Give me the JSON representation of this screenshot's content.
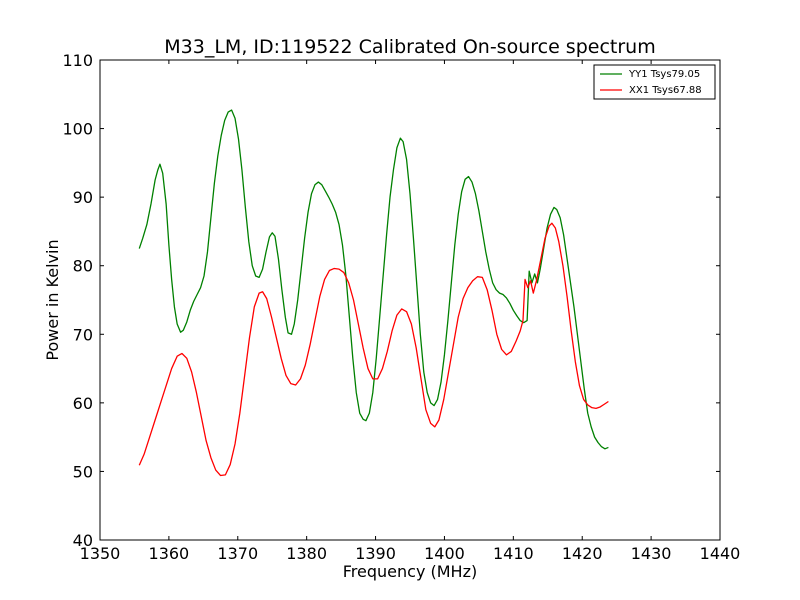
{
  "chart_data": {
    "type": "line",
    "title": "M33_LM, ID:119522 Calibrated On-source spectrum",
    "xlabel": "Frequency (MHz)",
    "ylabel": "Power in Kelvin",
    "xlim": [
      1350,
      1440
    ],
    "ylim": [
      40,
      110
    ],
    "xticks": [
      "1350",
      "1360",
      "1370",
      "1380",
      "1390",
      "1400",
      "1410",
      "1420",
      "1430",
      "1440"
    ],
    "yticks": [
      "40",
      "50",
      "60",
      "70",
      "80",
      "90",
      "100",
      "110"
    ],
    "grid": false,
    "legend_position": "top-right",
    "series": [
      {
        "name": "YY1 Tsys79.05",
        "color": "#008000",
        "points": [
          [
            1355.7,
            82.5
          ],
          [
            1356.2,
            84.0
          ],
          [
            1356.8,
            86.0
          ],
          [
            1357.4,
            89.0
          ],
          [
            1358.0,
            92.5
          ],
          [
            1358.4,
            94.0
          ],
          [
            1358.7,
            94.8
          ],
          [
            1359.1,
            93.5
          ],
          [
            1359.6,
            89.0
          ],
          [
            1360.0,
            83.0
          ],
          [
            1360.4,
            78.0
          ],
          [
            1360.8,
            74.0
          ],
          [
            1361.2,
            71.5
          ],
          [
            1361.7,
            70.3
          ],
          [
            1362.1,
            70.6
          ],
          [
            1362.6,
            71.8
          ],
          [
            1363.1,
            73.5
          ],
          [
            1363.6,
            74.8
          ],
          [
            1364.1,
            75.8
          ],
          [
            1364.6,
            76.8
          ],
          [
            1365.1,
            78.5
          ],
          [
            1365.6,
            82.0
          ],
          [
            1366.1,
            87.0
          ],
          [
            1366.6,
            92.0
          ],
          [
            1367.1,
            96.0
          ],
          [
            1367.6,
            99.0
          ],
          [
            1368.1,
            101.2
          ],
          [
            1368.6,
            102.4
          ],
          [
            1369.1,
            102.7
          ],
          [
            1369.6,
            101.5
          ],
          [
            1370.1,
            98.5
          ],
          [
            1370.6,
            94.0
          ],
          [
            1371.1,
            88.5
          ],
          [
            1371.6,
            83.5
          ],
          [
            1372.1,
            80.0
          ],
          [
            1372.6,
            78.5
          ],
          [
            1373.1,
            78.3
          ],
          [
            1373.6,
            79.5
          ],
          [
            1374.1,
            82.0
          ],
          [
            1374.6,
            84.2
          ],
          [
            1375.0,
            84.8
          ],
          [
            1375.4,
            84.3
          ],
          [
            1375.9,
            81.0
          ],
          [
            1376.4,
            76.5
          ],
          [
            1376.9,
            72.5
          ],
          [
            1377.3,
            70.2
          ],
          [
            1377.8,
            70.0
          ],
          [
            1378.2,
            71.5
          ],
          [
            1378.7,
            75.0
          ],
          [
            1379.2,
            79.5
          ],
          [
            1379.7,
            84.0
          ],
          [
            1380.2,
            87.8
          ],
          [
            1380.7,
            90.5
          ],
          [
            1381.2,
            91.8
          ],
          [
            1381.7,
            92.2
          ],
          [
            1382.2,
            91.8
          ],
          [
            1382.7,
            90.9
          ],
          [
            1383.2,
            90.0
          ],
          [
            1383.7,
            89.0
          ],
          [
            1384.2,
            87.8
          ],
          [
            1384.7,
            86.0
          ],
          [
            1385.2,
            83.0
          ],
          [
            1385.7,
            78.5
          ],
          [
            1386.2,
            72.5
          ],
          [
            1386.7,
            66.5
          ],
          [
            1387.2,
            61.5
          ],
          [
            1387.7,
            58.5
          ],
          [
            1388.2,
            57.6
          ],
          [
            1388.6,
            57.4
          ],
          [
            1389.1,
            58.5
          ],
          [
            1389.6,
            61.5
          ],
          [
            1390.1,
            66.5
          ],
          [
            1390.6,
            72.5
          ],
          [
            1391.1,
            78.5
          ],
          [
            1391.6,
            84.5
          ],
          [
            1392.1,
            90.0
          ],
          [
            1392.6,
            94.0
          ],
          [
            1393.1,
            97.2
          ],
          [
            1393.6,
            98.6
          ],
          [
            1394.0,
            98.1
          ],
          [
            1394.5,
            95.5
          ],
          [
            1395.0,
            90.5
          ],
          [
            1395.5,
            84.0
          ],
          [
            1396.0,
            77.0
          ],
          [
            1396.5,
            70.0
          ],
          [
            1397.0,
            64.5
          ],
          [
            1397.5,
            61.5
          ],
          [
            1398.0,
            60.0
          ],
          [
            1398.5,
            59.6
          ],
          [
            1399.0,
            60.5
          ],
          [
            1399.5,
            63.0
          ],
          [
            1400.0,
            67.0
          ],
          [
            1400.5,
            72.0
          ],
          [
            1401.0,
            77.5
          ],
          [
            1401.5,
            83.0
          ],
          [
            1402.0,
            87.5
          ],
          [
            1402.5,
            90.8
          ],
          [
            1403.0,
            92.6
          ],
          [
            1403.5,
            93.0
          ],
          [
            1404.0,
            92.2
          ],
          [
            1404.5,
            90.5
          ],
          [
            1405.0,
            88.0
          ],
          [
            1405.5,
            85.0
          ],
          [
            1406.0,
            82.0
          ],
          [
            1406.5,
            79.5
          ],
          [
            1407.0,
            77.5
          ],
          [
            1407.5,
            76.5
          ],
          [
            1408.0,
            76.0
          ],
          [
            1408.5,
            75.8
          ],
          [
            1409.0,
            75.3
          ],
          [
            1409.5,
            74.5
          ],
          [
            1410.0,
            73.5
          ],
          [
            1410.5,
            72.7
          ],
          [
            1411.0,
            72.0
          ],
          [
            1411.5,
            71.7
          ],
          [
            1412.0,
            72.0
          ],
          [
            1412.3,
            79.2
          ],
          [
            1412.7,
            77.5
          ],
          [
            1413.1,
            78.8
          ],
          [
            1413.5,
            77.5
          ],
          [
            1413.9,
            79.5
          ],
          [
            1414.4,
            82.5
          ],
          [
            1414.9,
            85.5
          ],
          [
            1415.4,
            87.5
          ],
          [
            1415.9,
            88.5
          ],
          [
            1416.3,
            88.2
          ],
          [
            1416.8,
            87.0
          ],
          [
            1417.3,
            84.5
          ],
          [
            1417.8,
            81.0
          ],
          [
            1418.3,
            77.5
          ],
          [
            1418.8,
            74.0
          ],
          [
            1419.3,
            70.0
          ],
          [
            1419.8,
            66.0
          ],
          [
            1420.3,
            62.0
          ],
          [
            1420.8,
            58.5
          ],
          [
            1421.3,
            56.5
          ],
          [
            1421.8,
            55.0
          ],
          [
            1422.3,
            54.2
          ],
          [
            1422.8,
            53.6
          ],
          [
            1423.3,
            53.3
          ],
          [
            1423.8,
            53.5
          ]
        ]
      },
      {
        "name": "XX1 Tsys67.88",
        "color": "#ff0000",
        "points": [
          [
            1355.7,
            50.9
          ],
          [
            1356.4,
            52.5
          ],
          [
            1357.2,
            55.0
          ],
          [
            1358.0,
            57.5
          ],
          [
            1358.8,
            60.0
          ],
          [
            1359.6,
            62.5
          ],
          [
            1360.4,
            65.0
          ],
          [
            1361.2,
            66.8
          ],
          [
            1361.9,
            67.2
          ],
          [
            1362.6,
            66.5
          ],
          [
            1363.3,
            64.5
          ],
          [
            1364.0,
            61.5
          ],
          [
            1364.7,
            58.0
          ],
          [
            1365.4,
            54.5
          ],
          [
            1366.1,
            52.0
          ],
          [
            1366.8,
            50.2
          ],
          [
            1367.5,
            49.4
          ],
          [
            1368.2,
            49.5
          ],
          [
            1368.9,
            51.0
          ],
          [
            1369.6,
            54.0
          ],
          [
            1370.3,
            58.5
          ],
          [
            1371.0,
            64.0
          ],
          [
            1371.7,
            69.5
          ],
          [
            1372.4,
            74.0
          ],
          [
            1373.1,
            76.0
          ],
          [
            1373.6,
            76.2
          ],
          [
            1374.2,
            75.2
          ],
          [
            1374.9,
            72.5
          ],
          [
            1375.6,
            69.5
          ],
          [
            1376.3,
            66.5
          ],
          [
            1377.0,
            64.0
          ],
          [
            1377.7,
            62.8
          ],
          [
            1378.4,
            62.6
          ],
          [
            1379.1,
            63.5
          ],
          [
            1379.8,
            65.5
          ],
          [
            1380.5,
            68.5
          ],
          [
            1381.2,
            72.0
          ],
          [
            1381.9,
            75.5
          ],
          [
            1382.6,
            78.0
          ],
          [
            1383.3,
            79.3
          ],
          [
            1384.0,
            79.6
          ],
          [
            1384.7,
            79.5
          ],
          [
            1385.4,
            79.0
          ],
          [
            1386.1,
            77.5
          ],
          [
            1386.8,
            75.0
          ],
          [
            1387.5,
            71.5
          ],
          [
            1388.2,
            68.0
          ],
          [
            1388.9,
            65.0
          ],
          [
            1389.6,
            63.5
          ],
          [
            1390.3,
            63.5
          ],
          [
            1391.0,
            65.0
          ],
          [
            1391.7,
            67.5
          ],
          [
            1392.4,
            70.5
          ],
          [
            1393.1,
            72.8
          ],
          [
            1393.8,
            73.7
          ],
          [
            1394.5,
            73.3
          ],
          [
            1395.2,
            71.5
          ],
          [
            1395.9,
            68.0
          ],
          [
            1396.6,
            63.5
          ],
          [
            1397.3,
            59.0
          ],
          [
            1398.0,
            57.0
          ],
          [
            1398.6,
            56.5
          ],
          [
            1399.2,
            57.5
          ],
          [
            1399.9,
            60.5
          ],
          [
            1400.6,
            64.5
          ],
          [
            1401.3,
            68.5
          ],
          [
            1402.0,
            72.5
          ],
          [
            1402.7,
            75.2
          ],
          [
            1403.4,
            76.8
          ],
          [
            1404.1,
            77.8
          ],
          [
            1404.8,
            78.4
          ],
          [
            1405.5,
            78.3
          ],
          [
            1406.2,
            76.5
          ],
          [
            1406.9,
            73.5
          ],
          [
            1407.6,
            70.0
          ],
          [
            1408.3,
            67.8
          ],
          [
            1409.0,
            67.0
          ],
          [
            1409.7,
            67.5
          ],
          [
            1410.4,
            69.0
          ],
          [
            1411.0,
            70.5
          ],
          [
            1411.4,
            72.0
          ],
          [
            1411.7,
            78.0
          ],
          [
            1412.1,
            76.8
          ],
          [
            1412.5,
            77.8
          ],
          [
            1412.9,
            76.0
          ],
          [
            1413.4,
            78.0
          ],
          [
            1414.0,
            81.0
          ],
          [
            1414.6,
            84.0
          ],
          [
            1415.2,
            85.8
          ],
          [
            1415.6,
            86.2
          ],
          [
            1416.1,
            85.5
          ],
          [
            1416.6,
            83.5
          ],
          [
            1417.2,
            80.0
          ],
          [
            1417.8,
            75.5
          ],
          [
            1418.4,
            70.5
          ],
          [
            1419.0,
            66.0
          ],
          [
            1419.6,
            62.5
          ],
          [
            1420.2,
            60.5
          ],
          [
            1420.8,
            59.7
          ],
          [
            1421.4,
            59.3
          ],
          [
            1422.0,
            59.2
          ],
          [
            1422.6,
            59.4
          ],
          [
            1423.2,
            59.8
          ],
          [
            1423.8,
            60.2
          ]
        ]
      }
    ]
  }
}
